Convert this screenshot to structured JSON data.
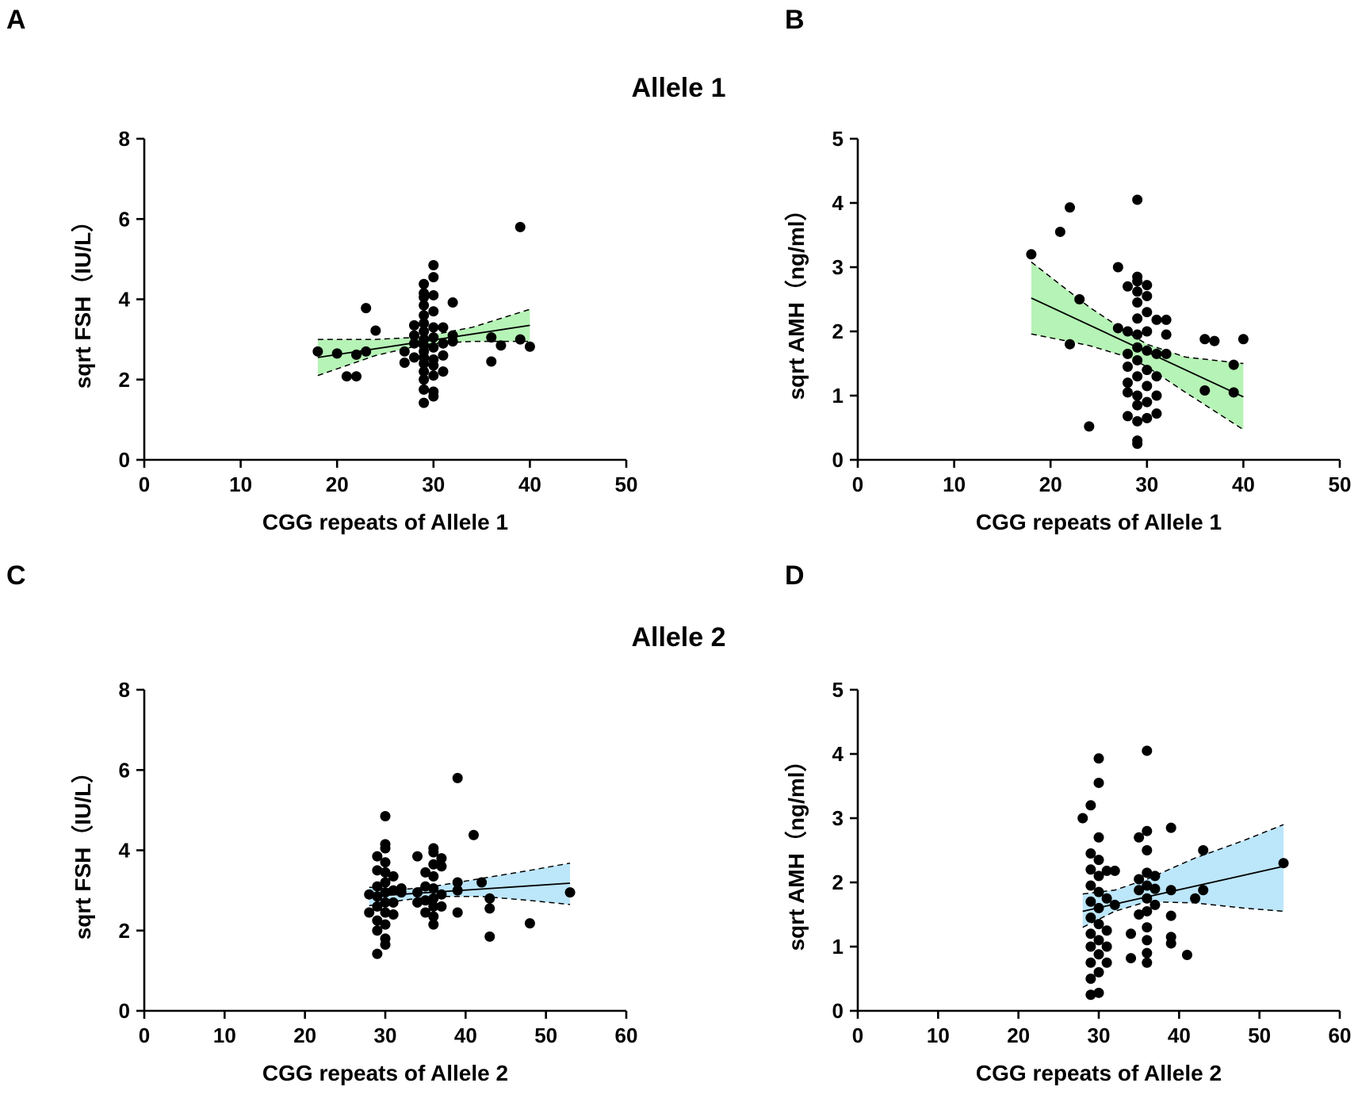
{
  "section_titles": [
    "Allele 1",
    "Allele 2"
  ],
  "chart_data": [
    {
      "panel": "A",
      "type": "scatter",
      "xlabel": "CGG repeats of Allele 1",
      "ylabel": "sqrt FSH（IU/L）",
      "xlim": [
        0,
        50
      ],
      "xticks": [
        0,
        10,
        20,
        30,
        40,
        50
      ],
      "ylim": [
        0,
        8
      ],
      "yticks": [
        0,
        2,
        4,
        6,
        8
      ],
      "ci_color": "#b6f3b6",
      "fit": {
        "x": [
          18,
          40
        ],
        "y": [
          2.55,
          3.35
        ]
      },
      "ci_upper": {
        "x": [
          18,
          24,
          28,
          30,
          34,
          40
        ],
        "y": [
          3.0,
          3.0,
          3.05,
          3.12,
          3.3,
          3.75
        ]
      },
      "ci_lower": {
        "x": [
          18,
          24,
          28,
          30,
          34,
          40
        ],
        "y": [
          2.1,
          2.6,
          2.82,
          2.9,
          2.95,
          2.95
        ]
      },
      "points": [
        [
          18,
          2.7
        ],
        [
          20,
          2.65
        ],
        [
          21,
          2.08
        ],
        [
          22,
          2.08
        ],
        [
          22,
          2.62
        ],
        [
          23,
          2.7
        ],
        [
          23,
          3.78
        ],
        [
          24,
          3.22
        ],
        [
          27,
          2.42
        ],
        [
          27,
          2.7
        ],
        [
          28,
          2.9
        ],
        [
          28,
          2.55
        ],
        [
          28,
          3.1
        ],
        [
          28,
          3.35
        ],
        [
          29,
          1.42
        ],
        [
          29,
          1.75
        ],
        [
          29,
          2.0
        ],
        [
          29,
          2.2
        ],
        [
          29,
          2.4
        ],
        [
          29,
          2.55
        ],
        [
          29,
          2.7
        ],
        [
          29,
          2.85
        ],
        [
          29,
          3.0
        ],
        [
          29,
          3.2
        ],
        [
          29,
          3.4
        ],
        [
          29,
          3.6
        ],
        [
          29,
          3.85
        ],
        [
          29,
          4.05
        ],
        [
          29,
          4.15
        ],
        [
          29,
          4.38
        ],
        [
          30,
          1.58
        ],
        [
          30,
          1.7
        ],
        [
          30,
          2.1
        ],
        [
          30,
          2.35
        ],
        [
          30,
          2.5
        ],
        [
          30,
          2.8
        ],
        [
          30,
          3.05
        ],
        [
          30,
          3.3
        ],
        [
          30,
          3.7
        ],
        [
          30,
          4.1
        ],
        [
          30,
          4.55
        ],
        [
          30,
          4.85
        ],
        [
          31,
          2.2
        ],
        [
          31,
          2.6
        ],
        [
          31,
          2.9
        ],
        [
          31,
          3.3
        ],
        [
          32,
          2.95
        ],
        [
          32,
          3.1
        ],
        [
          32,
          3.92
        ],
        [
          36,
          2.45
        ],
        [
          36,
          3.05
        ],
        [
          37,
          2.85
        ],
        [
          39,
          3.0
        ],
        [
          39,
          5.8
        ],
        [
          40,
          2.82
        ]
      ]
    },
    {
      "panel": "B",
      "type": "scatter",
      "xlabel": "CGG repeats of Allele 1",
      "ylabel": "sqrt AMH（ng/ml）",
      "xlim": [
        0,
        50
      ],
      "xticks": [
        0,
        10,
        20,
        30,
        40,
        50
      ],
      "ylim": [
        0,
        5
      ],
      "yticks": [
        0,
        1,
        2,
        3,
        4,
        5
      ],
      "ci_color": "#b6f3b6",
      "fit": {
        "x": [
          18,
          40
        ],
        "y": [
          2.52,
          0.98
        ]
      },
      "ci_upper": {
        "x": [
          18,
          24,
          28,
          30,
          34,
          40
        ],
        "y": [
          3.08,
          2.38,
          1.98,
          1.8,
          1.6,
          1.5
        ]
      },
      "ci_lower": {
        "x": [
          18,
          24,
          28,
          30,
          34,
          40
        ],
        "y": [
          1.96,
          1.78,
          1.6,
          1.45,
          1.05,
          0.47
        ]
      },
      "points": [
        [
          18,
          3.2
        ],
        [
          21,
          3.55
        ],
        [
          22,
          3.93
        ],
        [
          22,
          1.8
        ],
        [
          23,
          2.5
        ],
        [
          24,
          0.52
        ],
        [
          27,
          3.0
        ],
        [
          27,
          2.05
        ],
        [
          28,
          0.68
        ],
        [
          28,
          1.05
        ],
        [
          28,
          1.2
        ],
        [
          28,
          1.45
        ],
        [
          28,
          1.65
        ],
        [
          28,
          2.0
        ],
        [
          28,
          2.7
        ],
        [
          29,
          0.25
        ],
        [
          29,
          0.3
        ],
        [
          29,
          0.6
        ],
        [
          29,
          0.85
        ],
        [
          29,
          1.0
        ],
        [
          29,
          1.3
        ],
        [
          29,
          1.55
        ],
        [
          29,
          1.75
        ],
        [
          29,
          1.95
        ],
        [
          29,
          2.2
        ],
        [
          29,
          2.45
        ],
        [
          29,
          2.62
        ],
        [
          29,
          2.78
        ],
        [
          29,
          2.85
        ],
        [
          29,
          4.05
        ],
        [
          30,
          0.65
        ],
        [
          30,
          0.9
        ],
        [
          30,
          1.15
        ],
        [
          30,
          1.4
        ],
        [
          30,
          1.7
        ],
        [
          30,
          2.0
        ],
        [
          30,
          2.3
        ],
        [
          30,
          2.55
        ],
        [
          30,
          2.72
        ],
        [
          31,
          0.72
        ],
        [
          31,
          1.0
        ],
        [
          31,
          1.3
        ],
        [
          31,
          1.65
        ],
        [
          31,
          2.18
        ],
        [
          32,
          1.95
        ],
        [
          32,
          2.18
        ],
        [
          32,
          1.65
        ],
        [
          36,
          1.88
        ],
        [
          36,
          1.08
        ],
        [
          37,
          1.85
        ],
        [
          39,
          1.48
        ],
        [
          39,
          1.05
        ],
        [
          40,
          1.88
        ]
      ]
    },
    {
      "panel": "C",
      "type": "scatter",
      "xlabel": "CGG repeats of Allele 2",
      "ylabel": "sqrt FSH（IU/L）",
      "xlim": [
        0,
        60
      ],
      "xticks": [
        0,
        10,
        20,
        30,
        40,
        50,
        60
      ],
      "ylim": [
        0,
        8
      ],
      "yticks": [
        0,
        2,
        4,
        6,
        8
      ],
      "ci_color": "#bce6fa",
      "fit": {
        "x": [
          28,
          53
        ],
        "y": [
          2.85,
          3.18
        ]
      },
      "ci_upper": {
        "x": [
          28,
          32,
          36,
          42,
          48,
          53
        ],
        "y": [
          3.08,
          3.02,
          3.1,
          3.3,
          3.5,
          3.68
        ]
      },
      "ci_lower": {
        "x": [
          28,
          32,
          36,
          42,
          48,
          53
        ],
        "y": [
          2.62,
          2.75,
          2.85,
          2.85,
          2.75,
          2.65
        ]
      },
      "points": [
        [
          28,
          2.45
        ],
        [
          28,
          2.9
        ],
        [
          29,
          1.42
        ],
        [
          29,
          2.0
        ],
        [
          29,
          2.25
        ],
        [
          29,
          2.6
        ],
        [
          29,
          2.85
        ],
        [
          29,
          3.1
        ],
        [
          29,
          3.5
        ],
        [
          29,
          3.85
        ],
        [
          30,
          1.65
        ],
        [
          30,
          1.8
        ],
        [
          30,
          2.15
        ],
        [
          30,
          2.45
        ],
        [
          30,
          2.7
        ],
        [
          30,
          2.95
        ],
        [
          30,
          3.2
        ],
        [
          30,
          3.45
        ],
        [
          30,
          3.7
        ],
        [
          30,
          4.05
        ],
        [
          30,
          4.15
        ],
        [
          30,
          4.85
        ],
        [
          31,
          2.4
        ],
        [
          31,
          2.7
        ],
        [
          31,
          3.0
        ],
        [
          31,
          3.35
        ],
        [
          32,
          2.95
        ],
        [
          32,
          3.05
        ],
        [
          34,
          2.7
        ],
        [
          34,
          2.95
        ],
        [
          34,
          3.85
        ],
        [
          35,
          2.45
        ],
        [
          35,
          2.75
        ],
        [
          35,
          3.1
        ],
        [
          35,
          3.45
        ],
        [
          36,
          2.15
        ],
        [
          36,
          2.35
        ],
        [
          36,
          2.6
        ],
        [
          36,
          2.8
        ],
        [
          36,
          3.05
        ],
        [
          36,
          3.35
        ],
        [
          36,
          3.65
        ],
        [
          36,
          3.95
        ],
        [
          36,
          4.05
        ],
        [
          37,
          2.6
        ],
        [
          37,
          2.9
        ],
        [
          37,
          3.6
        ],
        [
          37,
          3.8
        ],
        [
          39,
          2.45
        ],
        [
          39,
          3.0
        ],
        [
          39,
          3.2
        ],
        [
          39,
          5.8
        ],
        [
          41,
          4.38
        ],
        [
          42,
          3.2
        ],
        [
          43,
          1.85
        ],
        [
          43,
          2.55
        ],
        [
          43,
          2.8
        ],
        [
          48,
          2.18
        ],
        [
          53,
          2.95
        ]
      ]
    },
    {
      "panel": "D",
      "type": "scatter",
      "xlabel": "CGG repeats of Allele 2",
      "ylabel": "sqrt AMH（ng/ml）",
      "xlim": [
        0,
        60
      ],
      "xticks": [
        0,
        10,
        20,
        30,
        40,
        50,
        60
      ],
      "ylim": [
        0,
        5
      ],
      "yticks": [
        0,
        1,
        2,
        3,
        4,
        5
      ],
      "ci_color": "#bce6fa",
      "fit": {
        "x": [
          28,
          53
        ],
        "y": [
          1.55,
          2.25
        ]
      },
      "ci_upper": {
        "x": [
          28,
          32,
          36,
          42,
          48,
          53
        ],
        "y": [
          1.82,
          1.88,
          2.05,
          2.38,
          2.65,
          2.9
        ]
      },
      "ci_lower": {
        "x": [
          28,
          32,
          36,
          42,
          48,
          53
        ],
        "y": [
          1.3,
          1.55,
          1.7,
          1.68,
          1.6,
          1.55
        ]
      },
      "points": [
        [
          28,
          3.0
        ],
        [
          29,
          0.25
        ],
        [
          29,
          0.5
        ],
        [
          29,
          0.75
        ],
        [
          29,
          1.0
        ],
        [
          29,
          1.2
        ],
        [
          29,
          1.45
        ],
        [
          29,
          1.7
        ],
        [
          29,
          1.95
        ],
        [
          29,
          2.2
        ],
        [
          29,
          2.45
        ],
        [
          29,
          3.2
        ],
        [
          30,
          0.28
        ],
        [
          30,
          0.6
        ],
        [
          30,
          0.88
        ],
        [
          30,
          1.1
        ],
        [
          30,
          1.35
        ],
        [
          30,
          1.6
        ],
        [
          30,
          1.85
        ],
        [
          30,
          2.1
        ],
        [
          30,
          2.35
        ],
        [
          30,
          2.7
        ],
        [
          30,
          3.55
        ],
        [
          30,
          3.93
        ],
        [
          31,
          0.75
        ],
        [
          31,
          1.0
        ],
        [
          31,
          1.25
        ],
        [
          31,
          1.75
        ],
        [
          31,
          2.18
        ],
        [
          32,
          1.65
        ],
        [
          32,
          2.18
        ],
        [
          34,
          0.82
        ],
        [
          34,
          1.2
        ],
        [
          35,
          1.5
        ],
        [
          35,
          1.88
        ],
        [
          35,
          2.05
        ],
        [
          35,
          2.7
        ],
        [
          36,
          0.75
        ],
        [
          36,
          0.9
        ],
        [
          36,
          1.1
        ],
        [
          36,
          1.3
        ],
        [
          36,
          1.55
        ],
        [
          36,
          1.75
        ],
        [
          36,
          1.95
        ],
        [
          36,
          2.15
        ],
        [
          36,
          2.5
        ],
        [
          36,
          2.8
        ],
        [
          36,
          4.05
        ],
        [
          37,
          1.65
        ],
        [
          37,
          1.9
        ],
        [
          37,
          2.1
        ],
        [
          39,
          1.05
        ],
        [
          39,
          1.15
        ],
        [
          39,
          1.48
        ],
        [
          39,
          1.88
        ],
        [
          39,
          2.85
        ],
        [
          41,
          0.87
        ],
        [
          42,
          1.75
        ],
        [
          43,
          1.88
        ],
        [
          43,
          2.5
        ],
        [
          53,
          2.3
        ]
      ]
    }
  ]
}
